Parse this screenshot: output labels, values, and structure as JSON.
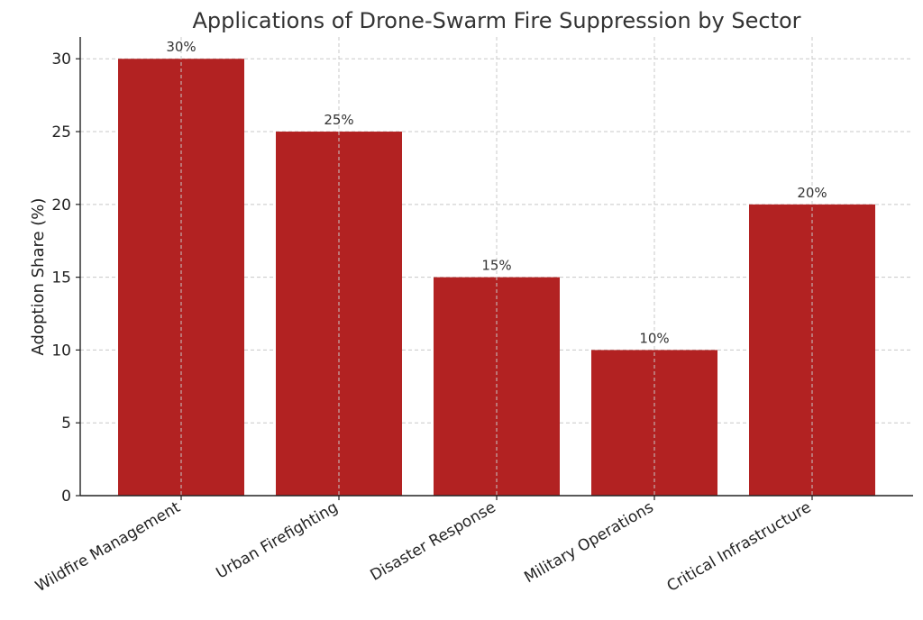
{
  "chart_data": {
    "type": "bar",
    "title": "Applications of Drone-Swarm Fire Suppression by Sector",
    "xlabel": "",
    "ylabel": "Adoption Share (%)",
    "categories": [
      "Wildfire Management",
      "Urban Firefighting",
      "Disaster Response",
      "Military Operations",
      "Critical Infrastructure"
    ],
    "values": [
      30,
      25,
      15,
      10,
      20
    ],
    "data_labels": [
      "30%",
      "25%",
      "15%",
      "10%",
      "20%"
    ],
    "yticks": [
      0,
      5,
      10,
      15,
      20,
      25,
      30
    ],
    "ylim": [
      0,
      31.5
    ],
    "grid": true,
    "bar_color": "#b22222"
  }
}
